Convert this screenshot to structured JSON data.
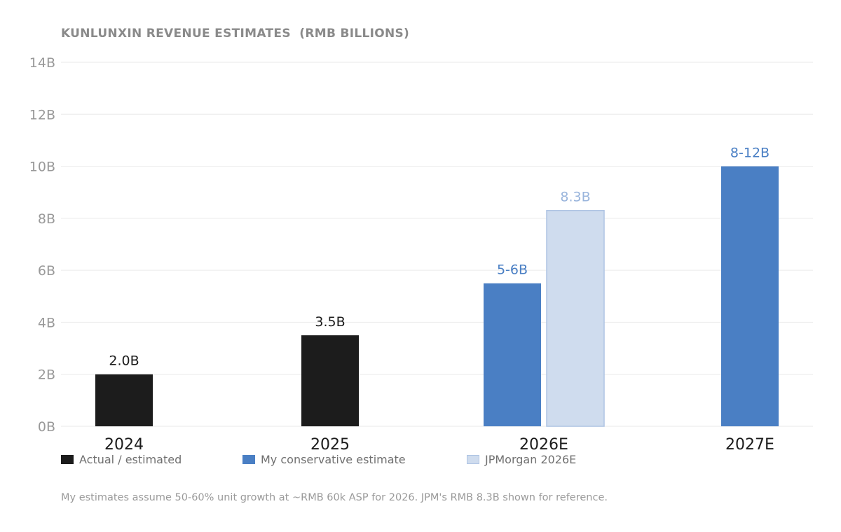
{
  "title": "KUNLUNXIN REVENUE ESTIMATES  (RMB BILLIONS)",
  "footnote": "My estimates assume 50-60% unit growth at ~RMB 60k ASP for 2026. JPM's RMB 8.3B shown for reference.",
  "colors": {
    "actual": "#1c1c1c",
    "conservative": "#4a7fc4",
    "jpmorgan": "#cfdcee",
    "jpmorgan_border": "#aec4e3",
    "jpmorgan_label": "#9ab5dc",
    "grid": "#eeeeee",
    "tick": "#999999"
  },
  "legend": [
    {
      "label": "Actual / estimated",
      "color": "#1c1c1c",
      "border": "#1c1c1c"
    },
    {
      "label": "My conservative estimate",
      "color": "#4a7fc4",
      "border": "#4a7fc4"
    },
    {
      "label": "JPMorgan 2026E",
      "color": "#cfdcee",
      "border": "#aec4e3"
    }
  ],
  "chart_data": {
    "type": "bar",
    "title": "KUNLUNXIN REVENUE ESTIMATES  (RMB BILLIONS)",
    "categories": [
      "2024",
      "2025",
      "2026E",
      "2027E"
    ],
    "ylim": [
      0,
      14
    ],
    "yticks": [
      0,
      2,
      4,
      6,
      8,
      10,
      12,
      14
    ],
    "ytick_labels": [
      "0B",
      "2B",
      "4B",
      "6B",
      "8B",
      "10B",
      "12B",
      "14B"
    ],
    "grid": true,
    "legend_position": "bottom-left",
    "bars": [
      {
        "category": "2024",
        "series": "Actual / estimated",
        "value": 2.0,
        "label": "2.0B",
        "color": "#1c1c1c",
        "label_color": "#1c1c1c"
      },
      {
        "category": "2025",
        "series": "Actual / estimated",
        "value": 3.5,
        "label": "3.5B",
        "color": "#1c1c1c",
        "label_color": "#1c1c1c"
      },
      {
        "category": "2026E",
        "series": "My conservative estimate",
        "value": 5.5,
        "label": "5-6B",
        "color": "#4a7fc4",
        "label_color": "#4a7fc4"
      },
      {
        "category": "2026E",
        "series": "JPMorgan 2026E",
        "value": 8.3,
        "label": "8.3B",
        "color": "#cfdcee",
        "border": "#aec4e3",
        "label_color": "#9ab5dc"
      },
      {
        "category": "2027E",
        "series": "My conservative estimate",
        "value": 10,
        "label": "8-12B",
        "color": "#4a7fc4",
        "label_color": "#4a7fc4"
      }
    ]
  }
}
